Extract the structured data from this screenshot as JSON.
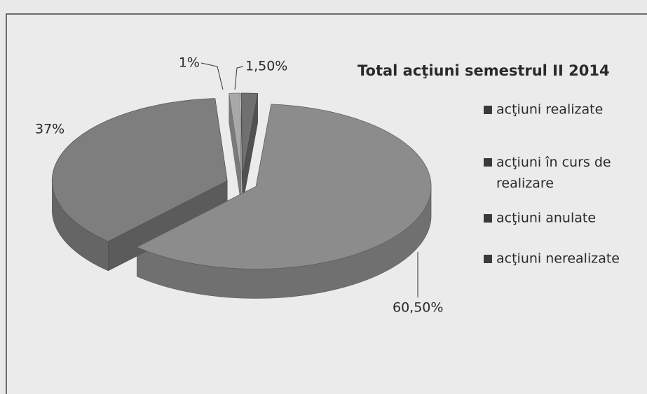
{
  "chart_data": {
    "type": "pie",
    "title": "Total acţiuni semestrul II 2014",
    "categories": [
      "acţiuni realizate",
      "acţiuni în curs de realizare",
      "acţiuni anulate",
      "acţiuni nerealizate"
    ],
    "values": [
      60.5,
      1.5,
      1,
      37
    ],
    "value_labels": [
      "60,50%",
      "1,50%",
      "1%",
      "37%"
    ],
    "colors": [
      "#8c8c8c",
      "#707070",
      "#a9a9a9",
      "#7e7e7e"
    ],
    "legend": "right"
  }
}
